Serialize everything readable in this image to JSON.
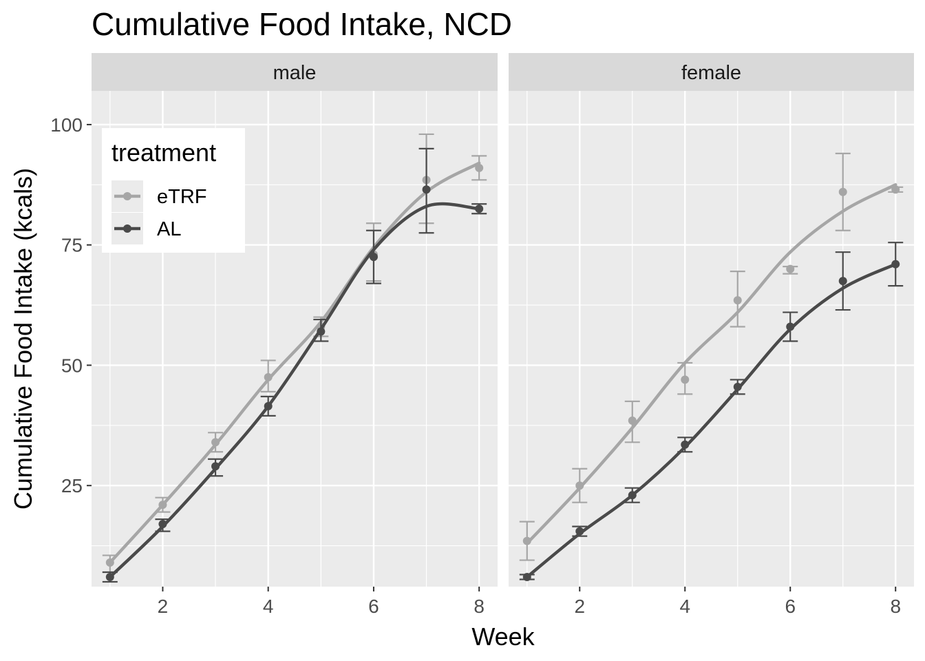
{
  "chart_data": {
    "type": "line",
    "title": "Cumulative Food Intake, NCD",
    "xlabel": "Week",
    "ylabel": "Cumulative Food Intake (kcals)",
    "xlim": [
      0.65,
      8.35
    ],
    "ylim": [
      4,
      107
    ],
    "x_ticks": [
      2,
      4,
      6,
      8
    ],
    "y_ticks": [
      25,
      50,
      75,
      100
    ],
    "grid": true,
    "legend": {
      "title": "treatment",
      "placement": "top-left inside",
      "entries": [
        "eTRF",
        "AL"
      ]
    },
    "colors": {
      "eTRF": "#a6a6a6",
      "AL": "#4a4a4a"
    },
    "panels": [
      {
        "label": "male",
        "series": [
          {
            "name": "eTRF",
            "x": [
              1,
              2,
              3,
              4,
              5,
              6,
              7,
              8
            ],
            "y": [
              9,
              21,
              34,
              47.5,
              58,
              73,
              88.5,
              91
            ],
            "err_low": [
              7,
              19.5,
              32,
              44.5,
              56,
              67.5,
              79.5,
              88.5
            ],
            "err_high": [
              10.5,
              22.5,
              36,
              51,
              60,
              79.5,
              98,
              93.5
            ],
            "smooth_y": [
              9,
              21,
              33.5,
              47,
              59,
              74.5,
              86,
              92
            ]
          },
          {
            "name": "AL",
            "x": [
              1,
              2,
              3,
              4,
              5,
              6,
              7,
              8
            ],
            "y": [
              6,
              17,
              29,
              41.5,
              57,
              72.5,
              86.5,
              82.5
            ],
            "err_low": [
              5,
              15.5,
              27,
              39.5,
              55,
              67,
              77.5,
              81.5
            ],
            "err_high": [
              7,
              18,
              30.5,
              43.5,
              59.5,
              78,
              95,
              83.5
            ],
            "smooth_y": [
              6,
              16.5,
              28.5,
              41.5,
              57.5,
              74,
              83,
              82.5
            ]
          }
        ]
      },
      {
        "label": "female",
        "series": [
          {
            "name": "eTRF",
            "x": [
              1,
              2,
              3,
              4,
              5,
              6,
              7,
              8
            ],
            "y": [
              13.5,
              25,
              38.5,
              47,
              63.5,
              70,
              86,
              86.5
            ],
            "err_low": [
              9.5,
              21.5,
              34,
              44,
              58,
              69,
              78,
              86
            ],
            "err_high": [
              17.5,
              28.5,
              42.5,
              50.5,
              69.5,
              70.5,
              94,
              87
            ],
            "smooth_y": [
              13,
              24.5,
              37,
              50.5,
              61,
              73.5,
              82,
              87.5
            ]
          },
          {
            "name": "AL",
            "x": [
              1,
              2,
              3,
              4,
              5,
              6,
              7,
              8
            ],
            "y": [
              6,
              15.5,
              23,
              33.5,
              45.5,
              58,
              67.5,
              71
            ],
            "err_low": [
              5.5,
              14.5,
              21.5,
              32,
              44,
              55,
              61.5,
              66.5
            ],
            "err_high": [
              6.5,
              16.5,
              24.5,
              35,
              47,
              61,
              73.5,
              75.5
            ],
            "smooth_y": [
              6,
              15,
              23,
              33,
              45,
              57.5,
              66,
              71
            ]
          }
        ]
      }
    ]
  }
}
